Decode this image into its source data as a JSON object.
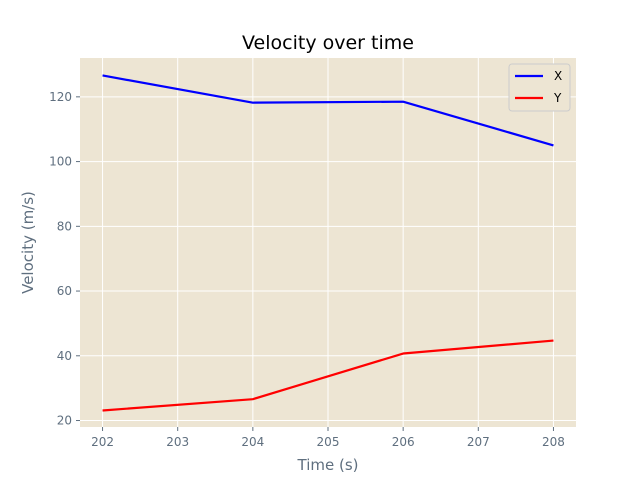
{
  "chart_data": {
    "type": "line",
    "title": "Velocity over time",
    "xlabel": "Time (s)",
    "ylabel": "Velocity (m/s)",
    "x": [
      202,
      204,
      206,
      208
    ],
    "series": [
      {
        "name": "X",
        "color": "#0000ff",
        "values": [
          126.6,
          118.2,
          118.5,
          105.0
        ]
      },
      {
        "name": "Y",
        "color": "#ff0000",
        "values": [
          23.1,
          26.6,
          40.7,
          44.7
        ]
      }
    ],
    "xlim": [
      201.7,
      208.3
    ],
    "ylim": [
      18.0,
      132.0
    ],
    "xticks": [
      "202",
      "203",
      "204",
      "205",
      "206",
      "207",
      "208"
    ],
    "yticks": [
      "20",
      "40",
      "60",
      "80",
      "100",
      "120"
    ],
    "legend": "top-right",
    "grid": true,
    "plot_background": "#ede5d3",
    "grid_color": "#ffffff",
    "tick_color": "#5f6f7f"
  }
}
